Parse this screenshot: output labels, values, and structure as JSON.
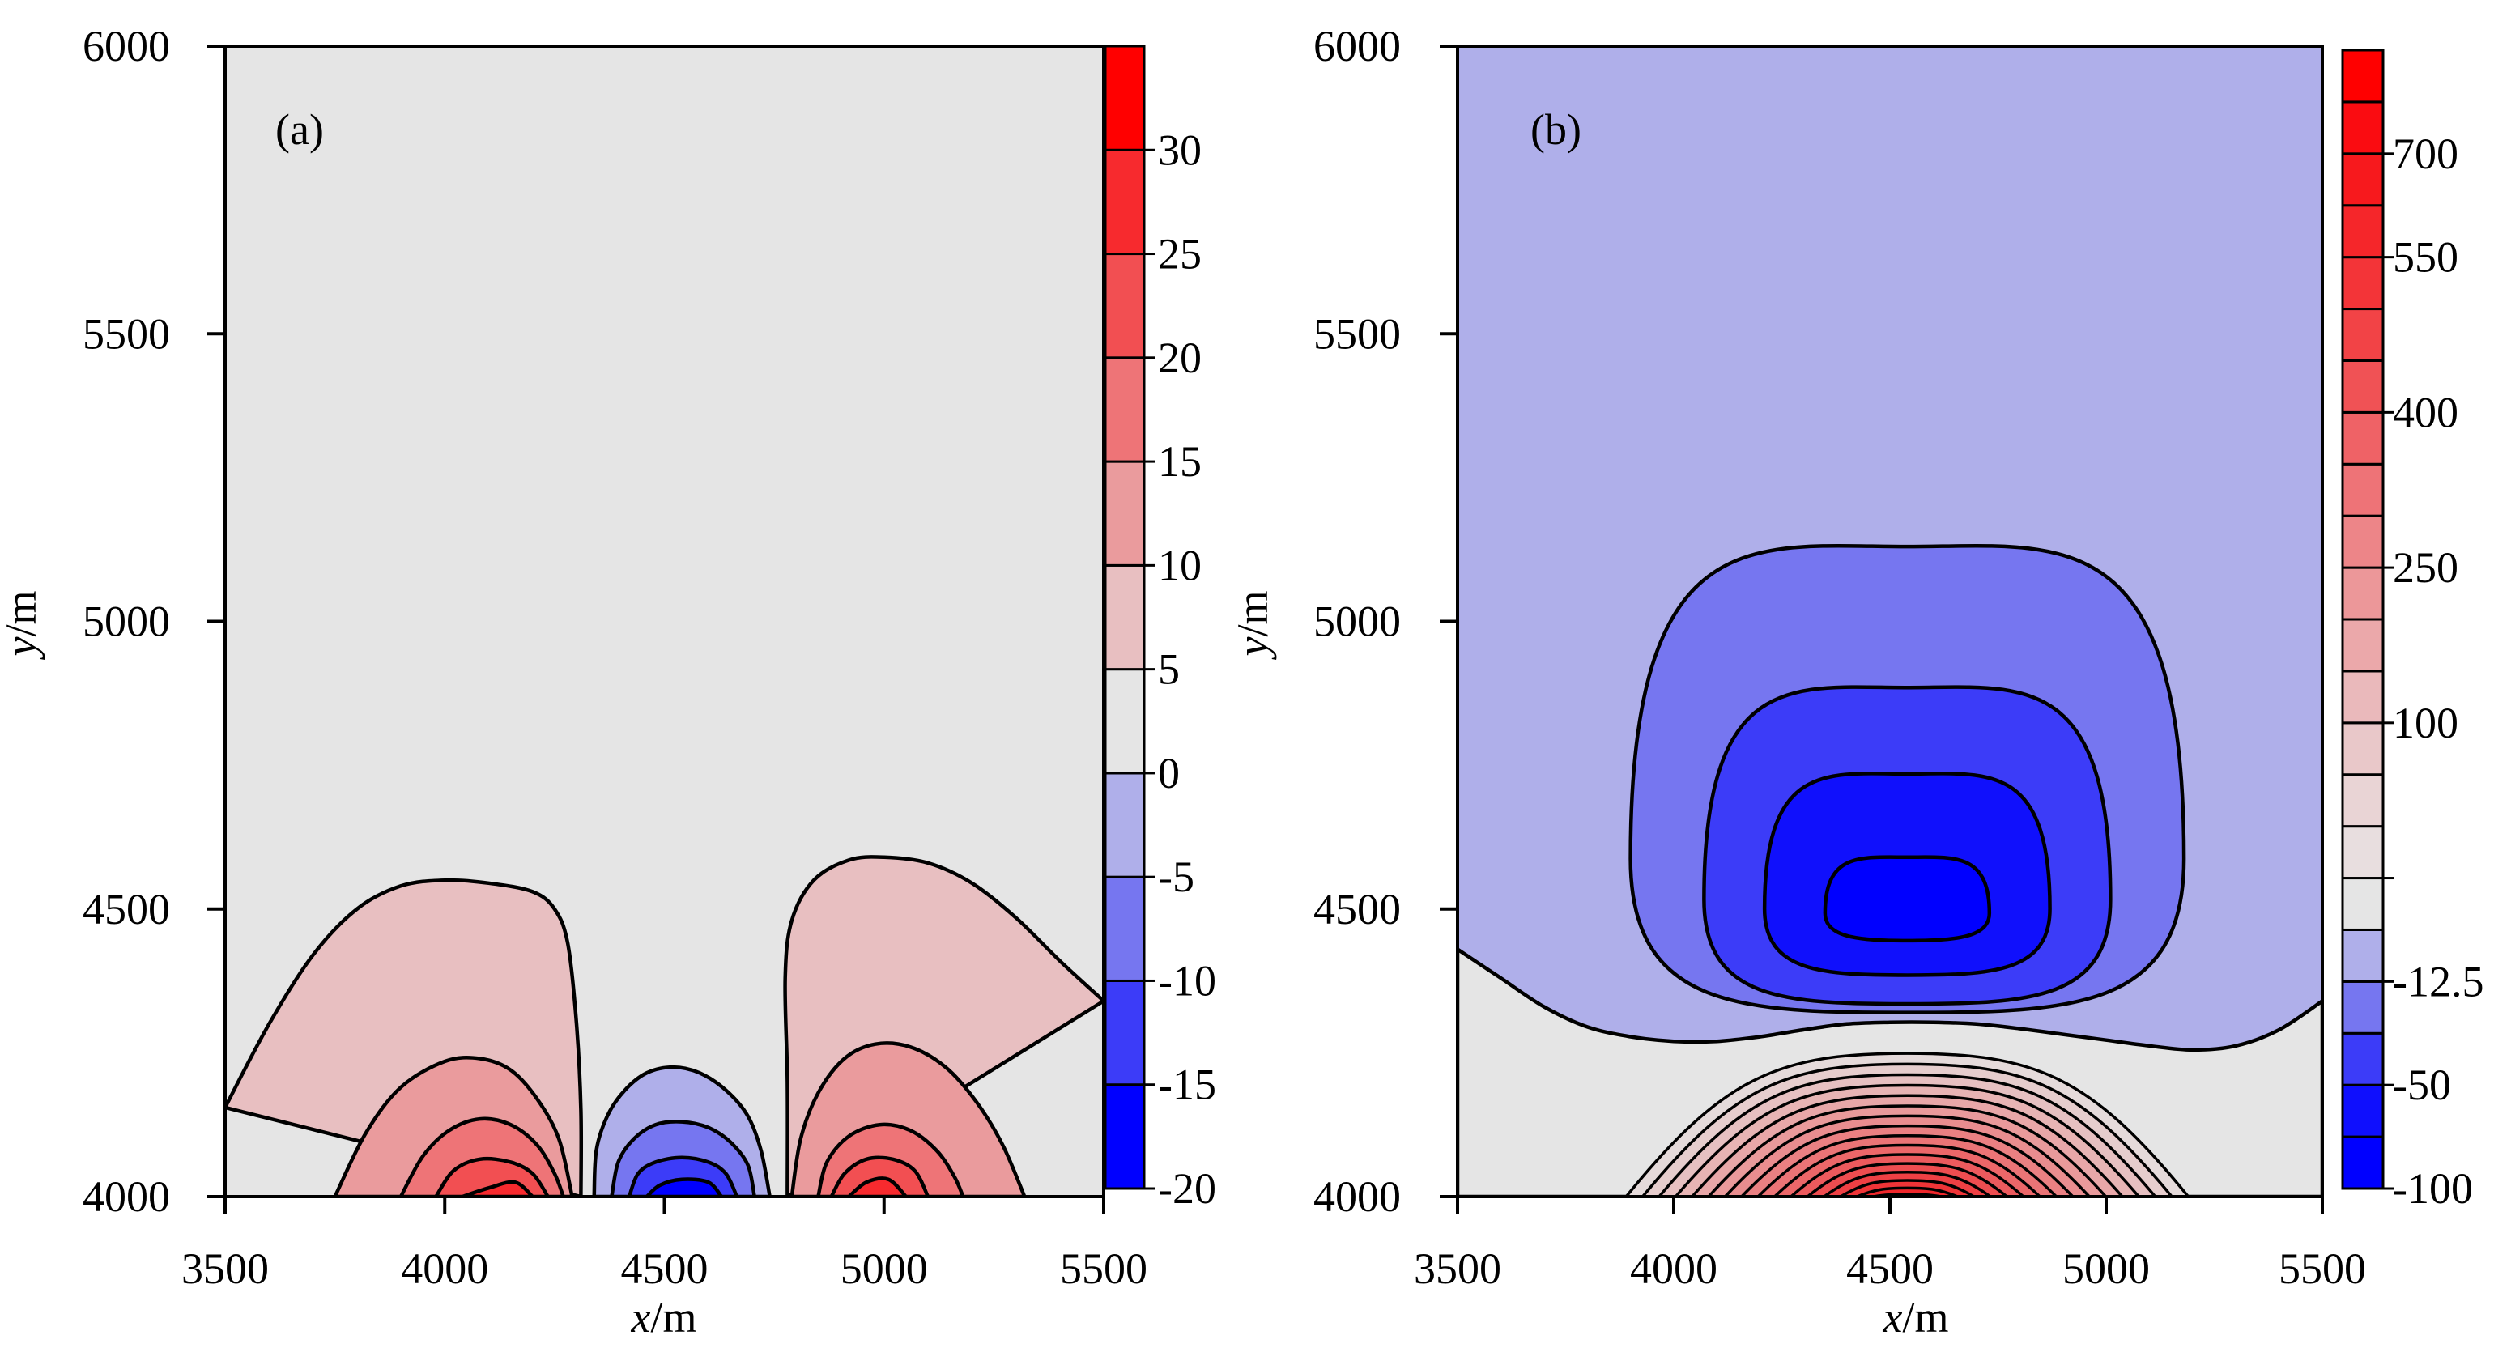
{
  "chart_data": [
    {
      "type": "contour",
      "panel_label": "(a)",
      "xlabel_var": "x",
      "xlabel_unit": "/m",
      "ylabel_var": "y",
      "ylabel_unit": "/m",
      "xlim": [
        3500,
        5500
      ],
      "ylim": [
        4000,
        6000
      ],
      "xticks": [
        3500,
        4000,
        4500,
        5000,
        5500
      ],
      "xtick_labels": [
        "3500",
        "4000",
        "4500",
        "5000",
        "5500"
      ],
      "yticks": [
        4000,
        4500,
        5000,
        5500,
        6000
      ],
      "ytick_labels": [
        "4000",
        "4500",
        "5000",
        "5500",
        "6000"
      ],
      "background_color": "#e5e5e5",
      "colorbar": {
        "levels": [
          -20,
          -15,
          -10,
          -5,
          0,
          5,
          10,
          15,
          20,
          25,
          30,
          35
        ],
        "colors": [
          "#0000ff",
          "#3c3cf8",
          "#7676f0",
          "#afafea",
          "#e5e5e5",
          "#e8bfc1",
          "#ea9b9d",
          "#ee7477",
          "#f24f52",
          "#f72a2e",
          "#ff0000"
        ],
        "tick_values": [
          -20,
          -15,
          -10,
          -5,
          0,
          5,
          10,
          15,
          20,
          25,
          30
        ],
        "tick_labels": [
          "-20",
          "-15",
          "-10",
          "-5",
          "0",
          "5",
          "10",
          "15",
          "20",
          "25",
          "30"
        ]
      },
      "lobes": [
        {
          "name": "left-positive",
          "cx": 4120,
          "base_y": 4000,
          "color_sequence": [
            "#e8bfc1",
            "#ea9b9d",
            "#ee7477",
            "#f24f52",
            "#f72a2e"
          ],
          "contours": [
            [
              [
                3500,
                4155
              ],
              [
                3600,
                4300
              ],
              [
                3700,
                4420
              ],
              [
                3800,
                4500
              ],
              [
                3900,
                4540
              ],
              [
                4000,
                4550
              ],
              [
                4100,
                4545
              ],
              [
                4200,
                4530
              ],
              [
                4250,
                4500
              ],
              [
                4280,
                4440
              ],
              [
                4300,
                4300
              ],
              [
                4310,
                4150
              ],
              [
                4310,
                4000
              ]
            ],
            [
              [
                3750,
                4000
              ],
              [
                3820,
                4110
              ],
              [
                3900,
                4190
              ],
              [
                4000,
                4235
              ],
              [
                4080,
                4240
              ],
              [
                4150,
                4220
              ],
              [
                4210,
                4170
              ],
              [
                4260,
                4100
              ],
              [
                4290,
                4000
              ]
            ],
            [
              [
                3900,
                4000
              ],
              [
                3950,
                4070
              ],
              [
                4010,
                4115
              ],
              [
                4080,
                4135
              ],
              [
                4150,
                4125
              ],
              [
                4210,
                4090
              ],
              [
                4250,
                4040
              ],
              [
                4270,
                4000
              ]
            ],
            [
              [
                3980,
                4000
              ],
              [
                4020,
                4045
              ],
              [
                4080,
                4065
              ],
              [
                4150,
                4060
              ],
              [
                4200,
                4040
              ],
              [
                4235,
                4000
              ]
            ],
            [
              [
                4040,
                4000
              ],
              [
                4100,
                4015
              ],
              [
                4160,
                4025
              ],
              [
                4200,
                4000
              ]
            ]
          ]
        },
        {
          "name": "center-negative",
          "cx": 4550,
          "base_y": 4000,
          "color_sequence": [
            "#afafea",
            "#7676f0",
            "#3c3cf8",
            "#0000ff"
          ],
          "contours": [
            [
              [
                4340,
                4000
              ],
              [
                4345,
                4080
              ],
              [
                4370,
                4140
              ],
              [
                4410,
                4185
              ],
              [
                4460,
                4215
              ],
              [
                4520,
                4225
              ],
              [
                4580,
                4215
              ],
              [
                4640,
                4185
              ],
              [
                4690,
                4140
              ],
              [
                4720,
                4080
              ],
              [
                4740,
                4000
              ]
            ],
            [
              [
                4380,
                4000
              ],
              [
                4395,
                4060
              ],
              [
                4430,
                4100
              ],
              [
                4480,
                4125
              ],
              [
                4540,
                4130
              ],
              [
                4600,
                4120
              ],
              [
                4650,
                4095
              ],
              [
                4690,
                4055
              ],
              [
                4705,
                4000
              ]
            ],
            [
              [
                4420,
                4000
              ],
              [
                4440,
                4040
              ],
              [
                4480,
                4060
              ],
              [
                4540,
                4068
              ],
              [
                4600,
                4060
              ],
              [
                4640,
                4040
              ],
              [
                4665,
                4000
              ]
            ],
            [
              [
                4460,
                4000
              ],
              [
                4490,
                4020
              ],
              [
                4540,
                4030
              ],
              [
                4600,
                4025
              ],
              [
                4630,
                4000
              ]
            ]
          ]
        },
        {
          "name": "right-positive",
          "cx": 4990,
          "base_y": 4000,
          "color_sequence": [
            "#e8bfc1",
            "#ea9b9d",
            "#ee7477",
            "#f24f52",
            "#f72a2e"
          ],
          "contours": [
            [
              [
                4780,
                4000
              ],
              [
                4780,
                4200
              ],
              [
                4775,
                4380
              ],
              [
                4790,
                4480
              ],
              [
                4840,
                4550
              ],
              [
                4920,
                4585
              ],
              [
                5000,
                4590
              ],
              [
                5100,
                4580
              ],
              [
                5200,
                4545
              ],
              [
                5300,
                4485
              ],
              [
                5400,
                4410
              ],
              [
                5500,
                4340
              ]
            ],
            [
              [
                4790,
                4000
              ],
              [
                4810,
                4100
              ],
              [
                4850,
                4180
              ],
              [
                4910,
                4240
              ],
              [
                4980,
                4265
              ],
              [
                5060,
                4260
              ],
              [
                5140,
                4225
              ],
              [
                5210,
                4165
              ],
              [
                5270,
                4090
              ],
              [
                5320,
                4000
              ]
            ],
            [
              [
                4850,
                4000
              ],
              [
                4870,
                4060
              ],
              [
                4920,
                4105
              ],
              [
                4990,
                4125
              ],
              [
                5060,
                4115
              ],
              [
                5120,
                4080
              ],
              [
                5160,
                4035
              ],
              [
                5180,
                4000
              ]
            ],
            [
              [
                4880,
                4000
              ],
              [
                4910,
                4040
              ],
              [
                4960,
                4065
              ],
              [
                5020,
                4065
              ],
              [
                5070,
                4045
              ],
              [
                5100,
                4000
              ]
            ],
            [
              [
                4920,
                4000
              ],
              [
                4960,
                4025
              ],
              [
                5010,
                4030
              ],
              [
                5050,
                4000
              ]
            ]
          ]
        }
      ]
    },
    {
      "type": "contour",
      "panel_label": "(b)",
      "xlabel_var": "x",
      "xlabel_unit": "/m",
      "ylabel_var": "y",
      "ylabel_unit": "/m",
      "xlim": [
        3500,
        5500
      ],
      "ylim": [
        4000,
        6000
      ],
      "xticks": [
        3500,
        4000,
        4500,
        5000,
        5500
      ],
      "xtick_labels": [
        "3500",
        "4000",
        "4500",
        "5000",
        "5500"
      ],
      "yticks": [
        4000,
        4500,
        5000,
        5500,
        6000
      ],
      "ytick_labels": [
        "4000",
        "4500",
        "5000",
        "5500",
        "6000"
      ],
      "background_color": "#afafea",
      "colorbar": {
        "n_bins": 22,
        "colors": [
          "#0000ff",
          "#0f0ffd",
          "#3c3cf8",
          "#7676f0",
          "#afafea",
          "#e5e5e5",
          "#e8dedf",
          "#e9d4d5",
          "#e9c8c9",
          "#eab9bb",
          "#eba8aa",
          "#ec9799",
          "#ed8588",
          "#ee7377",
          "#ef6266",
          "#f05255",
          "#f24346",
          "#f33438",
          "#f5262a",
          "#f7191d",
          "#fa0c11",
          "#ff0000"
        ],
        "tick_bins": [
          0,
          2,
          4,
          6,
          9,
          12,
          15,
          18,
          20
        ],
        "tick_labels": [
          "-100",
          "-50",
          "-12.5",
          "",
          "100",
          "250",
          "400",
          "550",
          "700"
        ]
      },
      "neutral_band_top": [
        [
          3500,
          4430
        ],
        [
          3600,
          4380
        ],
        [
          3700,
          4330
        ],
        [
          3800,
          4295
        ],
        [
          3900,
          4278
        ],
        [
          4000,
          4270
        ],
        [
          4100,
          4270
        ],
        [
          4200,
          4278
        ],
        [
          4300,
          4290
        ],
        [
          4400,
          4300
        ],
        [
          4500,
          4303
        ],
        [
          4600,
          4303
        ],
        [
          4700,
          4300
        ],
        [
          4800,
          4292
        ],
        [
          4900,
          4282
        ],
        [
          5000,
          4272
        ],
        [
          5100,
          4262
        ],
        [
          5200,
          4255
        ],
        [
          5300,
          4262
        ],
        [
          5400,
          4290
        ],
        [
          5500,
          4340
        ]
      ],
      "positive_dome": {
        "cx": 4540,
        "base_y": 4000,
        "outer_half_width": 650,
        "outer_height": 245,
        "levels": 16,
        "first_color": "#e5dada",
        "last_color": "#f01a1e"
      },
      "negative_nested": [
        {
          "cx": 4540,
          "top": 5130,
          "bottom": 4320,
          "half_w_bottom": 640,
          "half_w_top": 630,
          "color": "#7676f0"
        },
        {
          "cx": 4540,
          "top": 4885,
          "bottom": 4335,
          "half_w_bottom": 470,
          "half_w_top": 470,
          "color": "#3c3cf8"
        },
        {
          "cx": 4540,
          "top": 4735,
          "bottom": 4385,
          "half_w_bottom": 330,
          "half_w_top": 330,
          "color": "#1010fc"
        },
        {
          "cx": 4540,
          "top": 4590,
          "bottom": 4445,
          "half_w_bottom": 190,
          "half_w_top": 190,
          "color": "#0000ff"
        }
      ]
    }
  ]
}
